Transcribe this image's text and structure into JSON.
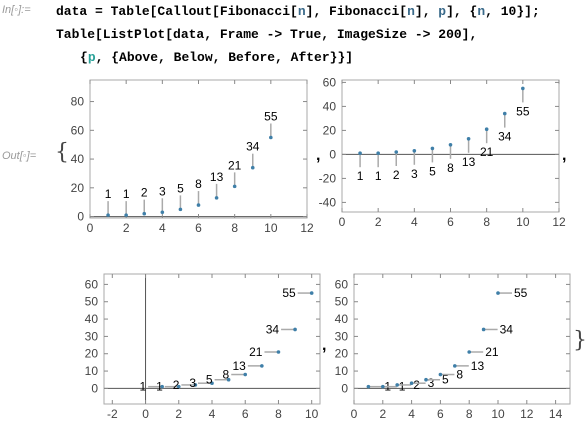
{
  "input": {
    "label": "In[◦]:=",
    "line1": [
      {
        "t": "data = Table[Callout[Fibonacci[",
        "c": ""
      },
      {
        "t": "n",
        "c": "sym"
      },
      {
        "t": "], Fibonacci[",
        "c": ""
      },
      {
        "t": "n",
        "c": "sym"
      },
      {
        "t": "], ",
        "c": ""
      },
      {
        "t": "p",
        "c": "sym"
      },
      {
        "t": "], {",
        "c": ""
      },
      {
        "t": "n",
        "c": "sym"
      },
      {
        "t": ", 10}];",
        "c": ""
      }
    ],
    "line2": [
      {
        "t": "Table[ListPlot[data, Frame -> True, ImageSize -> 200],",
        "c": ""
      }
    ],
    "line3": [
      {
        "t": "{",
        "c": ""
      },
      {
        "t": "p",
        "c": "arg"
      },
      {
        "t": ", {Above, Below, Before, After}}]",
        "c": ""
      }
    ]
  },
  "output": {
    "label": "Out[◦]=",
    "open_brace": "{",
    "close_brace": "}",
    "separator": ","
  },
  "chart_data": [
    {
      "type": "scatter",
      "callout_position": "Above",
      "x": [
        1,
        2,
        3,
        4,
        5,
        6,
        7,
        8,
        9,
        10
      ],
      "y": [
        1,
        1,
        2,
        3,
        5,
        8,
        13,
        21,
        34,
        55
      ],
      "labels": [
        "1",
        "1",
        "2",
        "3",
        "5",
        "8",
        "13",
        "21",
        "34",
        "55"
      ],
      "xlim": [
        0,
        12
      ],
      "ylim": [
        -1,
        95
      ],
      "xticks": [
        0,
        2,
        4,
        6,
        8,
        10,
        12
      ],
      "yticks": [
        0,
        20,
        40,
        60,
        80
      ],
      "frame": true
    },
    {
      "type": "scatter",
      "callout_position": "Below",
      "x": [
        1,
        2,
        3,
        4,
        5,
        6,
        7,
        8,
        9,
        10
      ],
      "y": [
        1,
        1,
        2,
        3,
        5,
        8,
        13,
        21,
        34,
        55
      ],
      "labels": [
        "1",
        "1",
        "2",
        "3",
        "5",
        "8",
        "13",
        "21",
        "34",
        "55"
      ],
      "xlim": [
        0,
        12
      ],
      "ylim": [
        -48,
        62
      ],
      "xticks": [
        0,
        2,
        4,
        6,
        8,
        10,
        12
      ],
      "yticks": [
        -40,
        -20,
        0,
        20,
        40,
        60
      ],
      "frame": true
    },
    {
      "type": "scatter",
      "callout_position": "Before",
      "x": [
        1,
        2,
        3,
        4,
        5,
        6,
        7,
        8,
        9,
        10
      ],
      "y": [
        1,
        1,
        2,
        3,
        5,
        8,
        13,
        21,
        34,
        55
      ],
      "labels": [
        "1",
        "1",
        "2",
        "3",
        "5",
        "8",
        "13",
        "21",
        "34",
        "55"
      ],
      "xlim": [
        -2.5,
        10.5
      ],
      "ylim": [
        -9,
        66
      ],
      "xticks": [
        -2,
        0,
        2,
        4,
        6,
        8,
        10
      ],
      "yticks": [
        0,
        10,
        20,
        30,
        40,
        50,
        60
      ],
      "frame": true
    },
    {
      "type": "scatter",
      "callout_position": "After",
      "x": [
        1,
        2,
        3,
        4,
        5,
        6,
        7,
        8,
        9,
        10
      ],
      "y": [
        1,
        1,
        2,
        3,
        5,
        8,
        13,
        21,
        34,
        55
      ],
      "labels": [
        "1",
        "1",
        "2",
        "3",
        "5",
        "8",
        "13",
        "21",
        "34",
        "55"
      ],
      "xlim": [
        0,
        15
      ],
      "ylim": [
        -9,
        66
      ],
      "xticks": [
        0,
        2,
        4,
        6,
        8,
        10,
        12,
        14
      ],
      "yticks": [
        0,
        10,
        20,
        30,
        40,
        50,
        60
      ],
      "frame": true
    }
  ]
}
